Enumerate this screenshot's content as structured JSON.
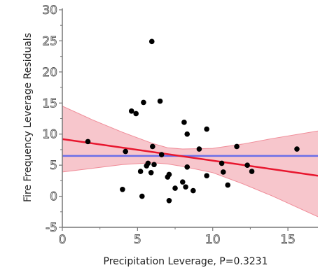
{
  "chart_data": {
    "type": "scatter",
    "title": "",
    "xlabel": "Precipitation Leverage, P=0.3231",
    "ylabel": "Fire Frequency Leverage Residuals",
    "xlim": [
      0,
      17
    ],
    "ylim": [
      -5,
      30
    ],
    "x_ticks": [
      0,
      5,
      10,
      15
    ],
    "y_ticks": [
      -5,
      0,
      5,
      10,
      15,
      20,
      25,
      30
    ],
    "grid": false,
    "points": [
      {
        "x": 1.7,
        "y": 8.8
      },
      {
        "x": 4.0,
        "y": 1.1
      },
      {
        "x": 4.2,
        "y": 7.2
      },
      {
        "x": 4.6,
        "y": 13.7
      },
      {
        "x": 4.9,
        "y": 13.3
      },
      {
        "x": 5.2,
        "y": 4.0
      },
      {
        "x": 5.3,
        "y": 0.0
      },
      {
        "x": 5.4,
        "y": 15.1
      },
      {
        "x": 5.6,
        "y": 4.9
      },
      {
        "x": 5.7,
        "y": 5.3
      },
      {
        "x": 5.9,
        "y": 3.8
      },
      {
        "x": 5.95,
        "y": 24.9
      },
      {
        "x": 6.0,
        "y": 8.0
      },
      {
        "x": 6.1,
        "y": 5.1
      },
      {
        "x": 6.5,
        "y": 15.3
      },
      {
        "x": 6.6,
        "y": 6.7
      },
      {
        "x": 7.0,
        "y": 3.1
      },
      {
        "x": 7.1,
        "y": 3.5
      },
      {
        "x": 7.1,
        "y": -0.7
      },
      {
        "x": 7.5,
        "y": 1.3
      },
      {
        "x": 8.0,
        "y": 2.3
      },
      {
        "x": 8.1,
        "y": 11.9
      },
      {
        "x": 8.2,
        "y": 1.5
      },
      {
        "x": 8.3,
        "y": 10.0
      },
      {
        "x": 8.3,
        "y": 4.7
      },
      {
        "x": 8.7,
        "y": 0.9
      },
      {
        "x": 9.1,
        "y": 7.6
      },
      {
        "x": 9.6,
        "y": 3.3
      },
      {
        "x": 9.6,
        "y": 10.8
      },
      {
        "x": 10.6,
        "y": 5.3
      },
      {
        "x": 10.7,
        "y": 3.9
      },
      {
        "x": 11.0,
        "y": 1.8
      },
      {
        "x": 11.6,
        "y": 8.0
      },
      {
        "x": 12.3,
        "y": 5.0
      },
      {
        "x": 12.6,
        "y": 4.0
      },
      {
        "x": 15.6,
        "y": 7.6
      }
    ],
    "mean_line": {
      "y": 6.5,
      "color": "#6a6ee8"
    },
    "fit_line": {
      "x": [
        0,
        17
      ],
      "y": [
        9.2,
        3.3
      ],
      "color": "#e8162e"
    },
    "confidence_band": {
      "x": [
        0,
        2,
        4,
        6,
        7,
        8,
        10,
        12,
        14,
        17
      ],
      "upper": [
        14.5,
        12.3,
        10.3,
        8.5,
        7.8,
        7.6,
        7.7,
        8.4,
        9.3,
        10.5
      ],
      "lower": [
        3.9,
        4.5,
        5.1,
        5.4,
        5.2,
        4.8,
        3.8,
        2.0,
        0.0,
        -3.3
      ],
      "color": "#f7c6cc"
    },
    "colors": {
      "points": "#000000",
      "band_edge": "#f08c98",
      "frame": "#777777"
    }
  }
}
